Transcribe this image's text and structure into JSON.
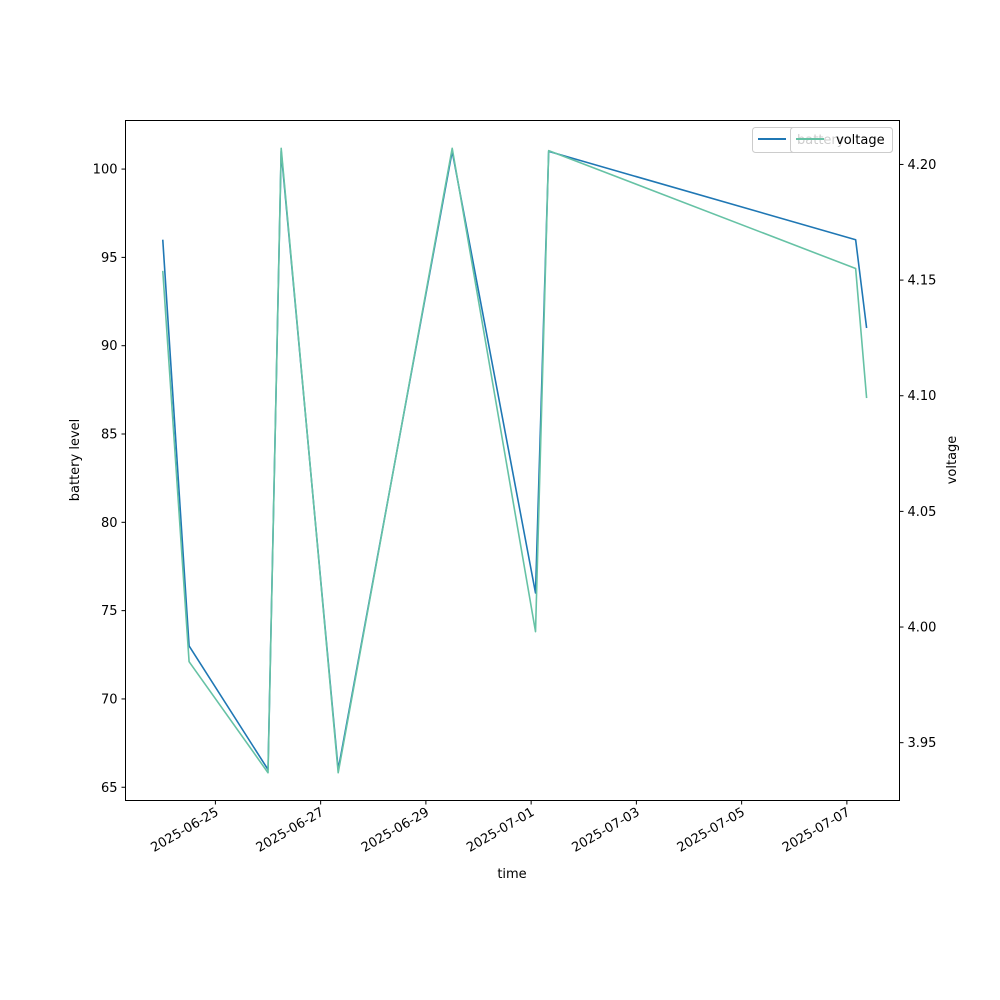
{
  "chart_data": {
    "type": "line",
    "title": "",
    "xlabel": "time",
    "ylabel": "battery level",
    "y2label": "voltage",
    "x": [
      "2025-06-24 00:00",
      "2025-06-24 12:00",
      "2025-06-26 00:00",
      "2025-06-26 06:00",
      "2025-06-27 08:00",
      "2025-06-29 12:00",
      "2025-07-01 02:00",
      "2025-07-01 08:00",
      "2025-07-07 04:00",
      "2025-07-07 09:00"
    ],
    "series": [
      {
        "name": "battery",
        "axis": "left",
        "color": "#1f77b4",
        "values": [
          96,
          73,
          66,
          101,
          66,
          101,
          76,
          101,
          96,
          91
        ]
      },
      {
        "name": "voltage",
        "axis": "right",
        "color": "#66c2a5",
        "values": [
          4.154,
          3.985,
          3.937,
          4.207,
          3.937,
          4.207,
          3.998,
          4.206,
          4.155,
          4.099
        ]
      }
    ],
    "xlim": [
      "2025-06-23 07:00",
      "2025-07-08 00:00"
    ],
    "ylim": [
      64.25,
      102.75
    ],
    "y2lim": [
      3.925,
      4.219
    ],
    "x_ticks": [
      "2025-06-25",
      "2025-06-27",
      "2025-06-29",
      "2025-07-01",
      "2025-07-03",
      "2025-07-05",
      "2025-07-07"
    ],
    "y_ticks": [
      65,
      70,
      75,
      80,
      85,
      90,
      95,
      100
    ],
    "y2_ticks": [
      3.95,
      4.0,
      4.05,
      4.1,
      4.15,
      4.2
    ],
    "grid": false,
    "legend_position": "upper-right"
  }
}
